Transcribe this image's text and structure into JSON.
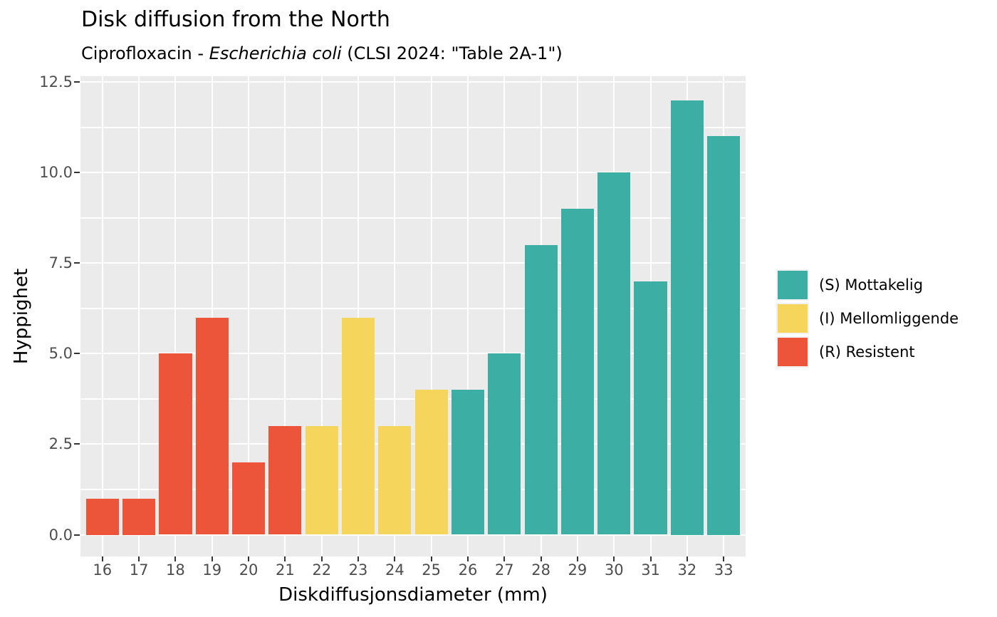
{
  "header": {
    "title": "Disk diffusion from the North",
    "subtitle": {
      "prefix": "Ciprofloxacin - ",
      "italic": "Escherichia coli",
      "suffix": " (CLSI 2024: \"Table 2A-1\")"
    }
  },
  "chart_data": {
    "type": "bar",
    "title": "Disk diffusion from the North",
    "subtitle": "Ciprofloxacin - Escherichia coli (CLSI 2024: \"Table 2A-1\")",
    "xlabel": "Diskdiffusjonsdiameter (mm)",
    "ylabel": "Hyppighet",
    "categories": [
      16,
      17,
      18,
      19,
      20,
      21,
      22,
      23,
      24,
      25,
      26,
      27,
      28,
      29,
      30,
      31,
      32,
      33
    ],
    "values": [
      1,
      1,
      5,
      6,
      2,
      3,
      3,
      6,
      3,
      4,
      4,
      5,
      8,
      9,
      10,
      7,
      12,
      11
    ],
    "groups": [
      "R",
      "R",
      "R",
      "R",
      "R",
      "R",
      "I",
      "I",
      "I",
      "I",
      "S",
      "S",
      "S",
      "S",
      "S",
      "S",
      "S",
      "S"
    ],
    "group_colors": {
      "S": "#3CAEA3",
      "I": "#F6D55C",
      "R": "#ED553B"
    },
    "legend": [
      {
        "group": "S",
        "label": "(S) Mottakelig",
        "color": "#3CAEA3"
      },
      {
        "group": "I",
        "label": "(I) Mellomliggende",
        "color": "#F6D55C"
      },
      {
        "group": "R",
        "label": "(R) Resistent",
        "color": "#ED553B"
      }
    ],
    "legend_position": "right",
    "bar_width": 0.9,
    "xlim": [
      15.4,
      33.6
    ],
    "ylim": [
      -0.6,
      12.66
    ],
    "y_major_ticks": [
      0,
      2.5,
      5,
      7.5,
      10,
      12.5
    ],
    "y_tick_labels": [
      "0.0",
      "2.5",
      "5.0",
      "7.5",
      "10.0",
      "12.5"
    ],
    "y_minor_ticks": [
      1.25,
      3.75,
      6.25,
      8.75,
      11.25
    ],
    "grid": true,
    "panel_bg": "#EBEBEB",
    "grid_color": "#FFFFFF",
    "tick_color": "#333333",
    "axis_text_color": "#4D4D4D"
  }
}
